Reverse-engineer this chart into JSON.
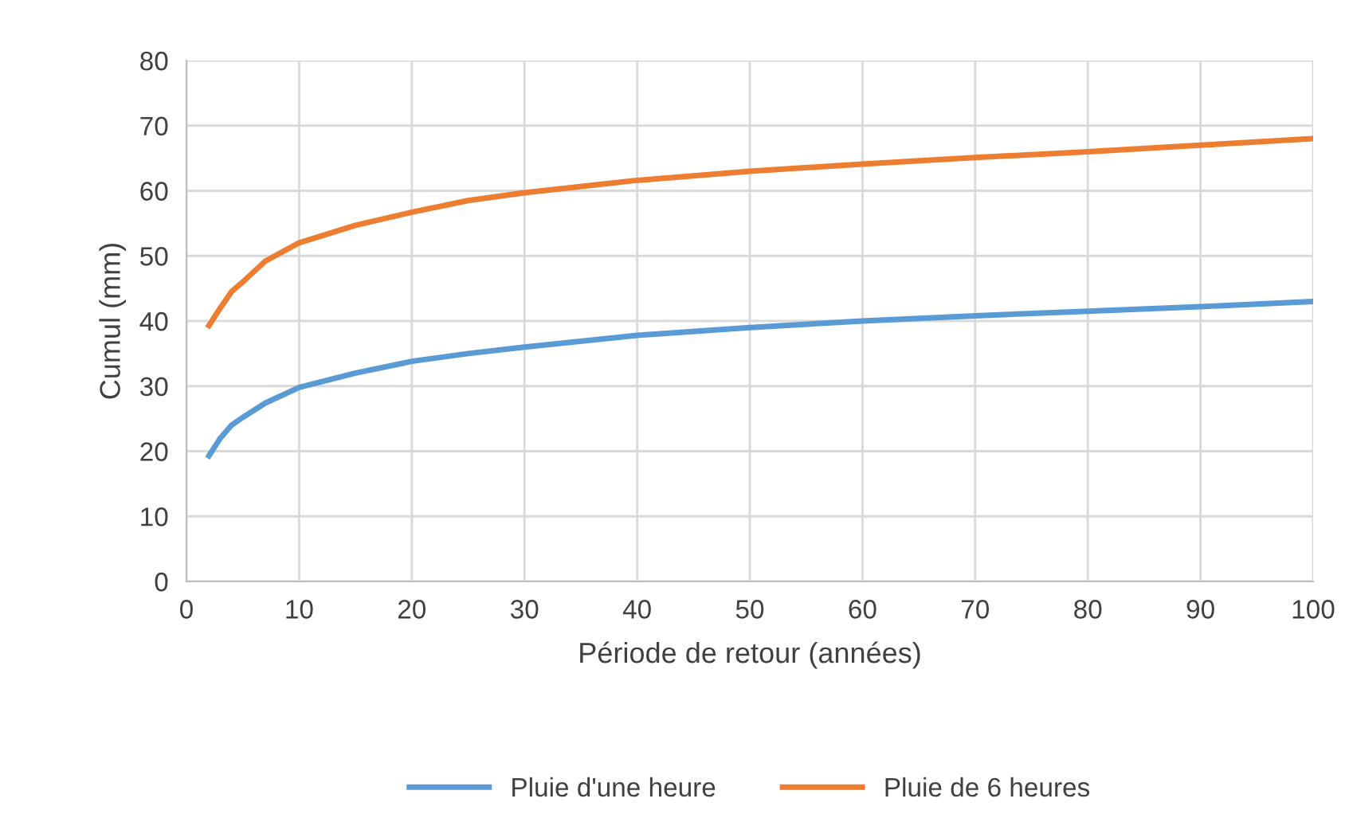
{
  "chart_data": {
    "type": "line",
    "xlabel": "Période de retour (années)",
    "ylabel": "Cumul (mm)",
    "x": [
      2,
      3,
      4,
      5,
      7,
      10,
      15,
      20,
      25,
      30,
      40,
      50,
      60,
      70,
      80,
      90,
      100
    ],
    "series": [
      {
        "name": "Pluie d'une heure",
        "color": "#5b9bd5",
        "values": [
          19.3,
          22,
          24,
          25.2,
          27.4,
          29.8,
          32,
          33.8,
          35,
          36,
          37.8,
          39,
          40,
          40.8,
          41.5,
          42.2,
          43
        ]
      },
      {
        "name": "Pluie de 6 heures",
        "color": "#ed7d31",
        "values": [
          39.3,
          42,
          44.5,
          46,
          49.2,
          52,
          54.7,
          56.7,
          58.5,
          59.7,
          61.6,
          63,
          64.1,
          65.1,
          66,
          67,
          68
        ]
      }
    ],
    "xlim": [
      0,
      100
    ],
    "xticks": [
      0,
      10,
      20,
      30,
      40,
      50,
      60,
      70,
      80,
      90,
      100
    ],
    "ylim": [
      0,
      80
    ],
    "yticks": [
      0,
      10,
      20,
      30,
      40,
      50,
      60,
      70,
      80
    ],
    "grid": true,
    "legend": "bottom",
    "marker": "none",
    "line_style": "solid"
  }
}
